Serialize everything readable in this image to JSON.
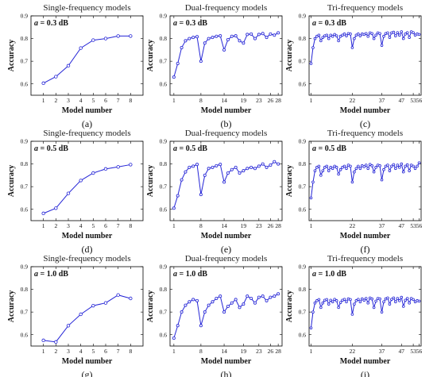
{
  "figure": {
    "colors": {
      "series": "#2424d6",
      "axis": "#000000",
      "background": "#ffffff"
    }
  },
  "chart_data": [
    {
      "type": "line",
      "panel_label": "(a)",
      "title": "Single-frequency models",
      "annotation_var": "a",
      "annotation_value": " = 0.3 dB",
      "xlabel": "Model number",
      "ylabel": "Accuracy",
      "xlim": [
        0,
        9
      ],
      "ylim": [
        0.55,
        0.9
      ],
      "xticks": [
        1,
        2,
        3,
        4,
        5,
        6,
        7,
        8
      ],
      "xticklabels": [
        "1",
        "2",
        "3",
        "4",
        "5",
        "6",
        "7",
        "8"
      ],
      "yticks": [
        0.6,
        0.7,
        0.8,
        0.9
      ],
      "yticklabels": [
        "0.6",
        "0.7",
        "0.8",
        "0.9"
      ],
      "x": [
        1,
        2,
        3,
        4,
        5,
        6,
        7,
        8
      ],
      "y": [
        0.603,
        0.632,
        0.68,
        0.758,
        0.793,
        0.8,
        0.811,
        0.811
      ]
    },
    {
      "type": "line",
      "panel_label": "(b)",
      "title": "Dual-frequency models",
      "annotation_var": "a",
      "annotation_value": " = 0.3 dB",
      "xlabel": "Model number",
      "ylabel": "Accuracy",
      "xlim": [
        0,
        29
      ],
      "ylim": [
        0.55,
        0.9
      ],
      "xticks": [
        1,
        8,
        14,
        19,
        23,
        26,
        28
      ],
      "xticklabels": [
        "1",
        "8",
        "14",
        "19",
        "23",
        "26",
        "28"
      ],
      "yticks": [
        0.6,
        0.7,
        0.8,
        0.9
      ],
      "yticklabels": [
        "0.6",
        "0.7",
        "0.8",
        "0.9"
      ],
      "x": [
        1,
        2,
        3,
        4,
        5,
        6,
        7,
        8,
        9,
        10,
        11,
        12,
        13,
        14,
        15,
        16,
        17,
        18,
        19,
        20,
        21,
        22,
        23,
        24,
        25,
        26,
        27,
        28
      ],
      "y": [
        0.63,
        0.69,
        0.76,
        0.79,
        0.8,
        0.805,
        0.808,
        0.7,
        0.78,
        0.8,
        0.805,
        0.81,
        0.812,
        0.75,
        0.795,
        0.81,
        0.812,
        0.79,
        0.78,
        0.818,
        0.82,
        0.8,
        0.818,
        0.822,
        0.805,
        0.82,
        0.815,
        0.825
      ]
    },
    {
      "type": "line",
      "panel_label": "(c)",
      "title": "Tri-frequency models",
      "annotation_var": "a",
      "annotation_value": " = 0.3 dB",
      "xlabel": "Model number",
      "ylabel": "Accuracy",
      "xlim": [
        0,
        57
      ],
      "ylim": [
        0.55,
        0.9
      ],
      "xticks": [
        1,
        22,
        37,
        47,
        53,
        56
      ],
      "xticklabels": [
        "1",
        "22",
        "37",
        "47",
        "53",
        "56"
      ],
      "yticks": [
        0.6,
        0.7,
        0.8,
        0.9
      ],
      "yticklabels": [
        "0.6",
        "0.7",
        "0.8",
        "0.9"
      ],
      "x": [
        1,
        2,
        3,
        4,
        5,
        6,
        7,
        8,
        9,
        10,
        11,
        12,
        13,
        14,
        15,
        16,
        17,
        18,
        19,
        20,
        21,
        22,
        23,
        24,
        25,
        26,
        27,
        28,
        29,
        30,
        31,
        32,
        33,
        34,
        35,
        36,
        37,
        38,
        39,
        40,
        41,
        42,
        43,
        44,
        45,
        46,
        47,
        48,
        49,
        50,
        51,
        52,
        53,
        54,
        55,
        56
      ],
      "y": [
        0.69,
        0.76,
        0.8,
        0.81,
        0.815,
        0.79,
        0.805,
        0.812,
        0.815,
        0.8,
        0.815,
        0.81,
        0.818,
        0.812,
        0.79,
        0.81,
        0.815,
        0.82,
        0.812,
        0.822,
        0.82,
        0.76,
        0.8,
        0.815,
        0.82,
        0.812,
        0.82,
        0.818,
        0.822,
        0.81,
        0.825,
        0.822,
        0.8,
        0.815,
        0.825,
        0.822,
        0.77,
        0.81,
        0.822,
        0.825,
        0.805,
        0.825,
        0.828,
        0.812,
        0.826,
        0.815,
        0.83,
        0.8,
        0.82,
        0.826,
        0.805,
        0.83,
        0.826,
        0.815,
        0.82,
        0.818
      ]
    },
    {
      "type": "line",
      "panel_label": "(d)",
      "title": "Single-frequency models",
      "annotation_var": "a",
      "annotation_value": " = 0.5 dB",
      "xlabel": "Model number",
      "ylabel": "Accuracy",
      "xlim": [
        0,
        9
      ],
      "ylim": [
        0.55,
        0.9
      ],
      "xticks": [
        1,
        2,
        3,
        4,
        5,
        6,
        7,
        8
      ],
      "xticklabels": [
        "1",
        "2",
        "3",
        "4",
        "5",
        "6",
        "7",
        "8"
      ],
      "yticks": [
        0.6,
        0.7,
        0.8,
        0.9
      ],
      "yticklabels": [
        "0.6",
        "0.7",
        "0.8",
        "0.9"
      ],
      "x": [
        1,
        2,
        3,
        4,
        5,
        6,
        7,
        8
      ],
      "y": [
        0.582,
        0.605,
        0.67,
        0.727,
        0.76,
        0.778,
        0.787,
        0.797
      ]
    },
    {
      "type": "line",
      "panel_label": "(e)",
      "title": "Dual-frequency models",
      "annotation_var": "a",
      "annotation_value": " = 0.5 dB",
      "xlabel": "Model number",
      "ylabel": "Accuracy",
      "xlim": [
        0,
        29
      ],
      "ylim": [
        0.55,
        0.9
      ],
      "xticks": [
        1,
        8,
        14,
        19,
        23,
        26,
        28
      ],
      "xticklabels": [
        "1",
        "8",
        "14",
        "19",
        "23",
        "26",
        "28"
      ],
      "yticks": [
        0.6,
        0.7,
        0.8,
        0.9
      ],
      "yticklabels": [
        "0.6",
        "0.7",
        "0.8",
        "0.9"
      ],
      "x": [
        1,
        2,
        3,
        4,
        5,
        6,
        7,
        8,
        9,
        10,
        11,
        12,
        13,
        14,
        15,
        16,
        17,
        18,
        19,
        20,
        21,
        22,
        23,
        24,
        25,
        26,
        27,
        28
      ],
      "y": [
        0.605,
        0.66,
        0.73,
        0.765,
        0.785,
        0.79,
        0.798,
        0.665,
        0.75,
        0.78,
        0.785,
        0.792,
        0.798,
        0.72,
        0.76,
        0.775,
        0.785,
        0.76,
        0.77,
        0.78,
        0.785,
        0.78,
        0.79,
        0.8,
        0.785,
        0.795,
        0.81,
        0.8
      ]
    },
    {
      "type": "line",
      "panel_label": "(f)",
      "title": "Tri-frequency models",
      "annotation_var": "a",
      "annotation_value": " = 0.5 dB",
      "xlabel": "Model number",
      "ylabel": "Accuracy",
      "xlim": [
        0,
        57
      ],
      "ylim": [
        0.55,
        0.9
      ],
      "xticks": [
        1,
        22,
        37,
        47,
        53,
        56
      ],
      "xticklabels": [
        "1",
        "22",
        "37",
        "47",
        "53",
        "56"
      ],
      "yticks": [
        0.6,
        0.7,
        0.8,
        0.9
      ],
      "yticklabels": [
        "0.6",
        "0.7",
        "0.8",
        "0.9"
      ],
      "x": [
        1,
        2,
        3,
        4,
        5,
        6,
        7,
        8,
        9,
        10,
        11,
        12,
        13,
        14,
        15,
        16,
        17,
        18,
        19,
        20,
        21,
        22,
        23,
        24,
        25,
        26,
        27,
        28,
        29,
        30,
        31,
        32,
        33,
        34,
        35,
        36,
        37,
        38,
        39,
        40,
        41,
        42,
        43,
        44,
        45,
        46,
        47,
        48,
        49,
        50,
        51,
        52,
        53,
        54,
        55,
        56
      ],
      "y": [
        0.65,
        0.72,
        0.77,
        0.785,
        0.79,
        0.75,
        0.77,
        0.785,
        0.79,
        0.77,
        0.785,
        0.78,
        0.79,
        0.785,
        0.755,
        0.775,
        0.785,
        0.79,
        0.78,
        0.795,
        0.79,
        0.72,
        0.765,
        0.78,
        0.79,
        0.78,
        0.792,
        0.788,
        0.795,
        0.78,
        0.798,
        0.792,
        0.765,
        0.785,
        0.795,
        0.792,
        0.73,
        0.775,
        0.79,
        0.795,
        0.77,
        0.79,
        0.797,
        0.78,
        0.795,
        0.785,
        0.8,
        0.765,
        0.79,
        0.796,
        0.77,
        0.795,
        0.79,
        0.78,
        0.79,
        0.805
      ]
    },
    {
      "type": "line",
      "panel_label": "(g)",
      "title": "Single-frequency models",
      "annotation_var": "a",
      "annotation_value": " = 1.0 dB",
      "xlabel": "Model number",
      "ylabel": "Accuracy",
      "xlim": [
        0,
        9
      ],
      "ylim": [
        0.55,
        0.9
      ],
      "xticks": [
        1,
        2,
        3,
        4,
        5,
        6,
        7,
        8
      ],
      "xticklabels": [
        "1",
        "2",
        "3",
        "4",
        "5",
        "6",
        "7",
        "8"
      ],
      "yticks": [
        0.6,
        0.7,
        0.8,
        0.9
      ],
      "yticklabels": [
        "0.6",
        "0.7",
        "0.8",
        "0.9"
      ],
      "x": [
        1,
        2,
        3,
        4,
        5,
        6,
        7,
        8
      ],
      "y": [
        0.575,
        0.568,
        0.64,
        0.69,
        0.728,
        0.74,
        0.775,
        0.76
      ]
    },
    {
      "type": "line",
      "panel_label": "(h)",
      "title": "Dual-frequency models",
      "annotation_var": "a",
      "annotation_value": " = 1.0 dB",
      "xlabel": "Model number",
      "ylabel": "Accuracy",
      "xlim": [
        0,
        29
      ],
      "ylim": [
        0.55,
        0.9
      ],
      "xticks": [
        1,
        8,
        14,
        19,
        23,
        26,
        28
      ],
      "xticklabels": [
        "1",
        "8",
        "14",
        "19",
        "23",
        "26",
        "28"
      ],
      "yticks": [
        0.6,
        0.7,
        0.8,
        0.9
      ],
      "yticklabels": [
        "0.6",
        "0.7",
        "0.8",
        "0.9"
      ],
      "x": [
        1,
        2,
        3,
        4,
        5,
        6,
        7,
        8,
        9,
        10,
        11,
        12,
        13,
        14,
        15,
        16,
        17,
        18,
        19,
        20,
        21,
        22,
        23,
        24,
        25,
        26,
        27,
        28
      ],
      "y": [
        0.585,
        0.64,
        0.7,
        0.73,
        0.745,
        0.755,
        0.75,
        0.64,
        0.7,
        0.73,
        0.745,
        0.76,
        0.77,
        0.7,
        0.725,
        0.74,
        0.755,
        0.72,
        0.735,
        0.77,
        0.76,
        0.74,
        0.765,
        0.77,
        0.75,
        0.765,
        0.77,
        0.78
      ]
    },
    {
      "type": "line",
      "panel_label": "(i)",
      "title": "Tri-frequency models",
      "annotation_var": "a",
      "annotation_value": " = 1.0 dB",
      "xlabel": "Model number",
      "ylabel": "Accuracy",
      "xlim": [
        0,
        57
      ],
      "ylim": [
        0.55,
        0.9
      ],
      "xticks": [
        1,
        22,
        37,
        47,
        53,
        56
      ],
      "xticklabels": [
        "1",
        "22",
        "37",
        "47",
        "53",
        "56"
      ],
      "yticks": [
        0.6,
        0.7,
        0.8,
        0.9
      ],
      "yticklabels": [
        "0.6",
        "0.7",
        "0.8",
        "0.9"
      ],
      "x": [
        1,
        2,
        3,
        4,
        5,
        6,
        7,
        8,
        9,
        10,
        11,
        12,
        13,
        14,
        15,
        16,
        17,
        18,
        19,
        20,
        21,
        22,
        23,
        24,
        25,
        26,
        27,
        28,
        29,
        30,
        31,
        32,
        33,
        34,
        35,
        36,
        37,
        38,
        39,
        40,
        41,
        42,
        43,
        44,
        45,
        46,
        47,
        48,
        49,
        50,
        51,
        52,
        53,
        54,
        55,
        56
      ],
      "y": [
        0.63,
        0.7,
        0.74,
        0.75,
        0.755,
        0.72,
        0.74,
        0.752,
        0.755,
        0.735,
        0.752,
        0.745,
        0.756,
        0.75,
        0.72,
        0.742,
        0.752,
        0.756,
        0.745,
        0.758,
        0.755,
        0.69,
        0.735,
        0.75,
        0.756,
        0.745,
        0.758,
        0.752,
        0.76,
        0.74,
        0.762,
        0.758,
        0.72,
        0.748,
        0.76,
        0.758,
        0.7,
        0.745,
        0.758,
        0.762,
        0.735,
        0.756,
        0.762,
        0.745,
        0.76,
        0.75,
        0.765,
        0.725,
        0.752,
        0.76,
        0.74,
        0.76,
        0.755,
        0.745,
        0.75,
        0.748
      ]
    }
  ]
}
